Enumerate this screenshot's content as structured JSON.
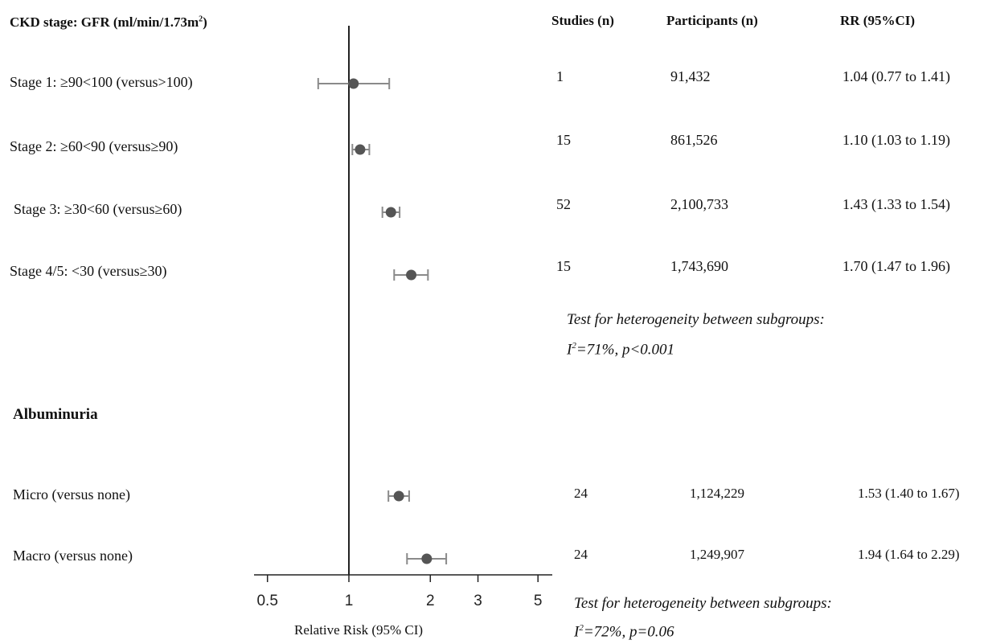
{
  "chart_data": {
    "type": "forest",
    "title": "",
    "xlabel": "Relative Risk (95% CI)",
    "xscale": "log",
    "xlim": [
      0.5,
      5
    ],
    "xticks": [
      0.5,
      1,
      2,
      3,
      5
    ],
    "xtick_labels": [
      "0.5",
      "1",
      "2",
      "3",
      "5"
    ],
    "reference_line": 1,
    "columns": [
      "Studies (n)",
      "Participants (n)",
      "RR (95%CI)"
    ],
    "groups": [
      {
        "heading_main": "CKD stage: GFR (ml/min/1.73m",
        "heading_sup": "2",
        "heading_end": ")",
        "rows": [
          {
            "label": "Stage 1: ≥90<100 (versus>100)",
            "studies": "1",
            "participants": "91,432",
            "rr_text": "1.04 (0.77 to 1.41)",
            "rr": 1.04,
            "lo": 0.77,
            "hi": 1.41
          },
          {
            "label": "Stage 2: ≥60<90 (versus≥90)",
            "studies": "15",
            "participants": "861,526",
            "rr_text": "1.10 (1.03 to 1.19)",
            "rr": 1.1,
            "lo": 1.03,
            "hi": 1.19
          },
          {
            "label": "Stage 3: ≥30<60 (versus≥60)",
            "studies": "52",
            "participants": "2,100,733",
            "rr_text": "1.43 (1.33 to 1.54)",
            "rr": 1.43,
            "lo": 1.33,
            "hi": 1.54
          },
          {
            "label": "Stage 4/5: <30 (versus≥30)",
            "studies": "15",
            "participants": "1,743,690",
            "rr_text": "1.70 (1.47 to 1.96)",
            "rr": 1.7,
            "lo": 1.47,
            "hi": 1.96
          }
        ],
        "heterogeneity_line1": "Test for heterogeneity between subgroups:",
        "heterogeneity_i": "I",
        "heterogeneity_sup": "2",
        "heterogeneity_rest": "=71%, p<0.001"
      },
      {
        "heading_main": "Albuminuria",
        "rows": [
          {
            "label": "Micro (versus none)",
            "studies": "24",
            "participants": "1,124,229",
            "rr_text": "1.53 (1.40 to 1.67)",
            "rr": 1.53,
            "lo": 1.4,
            "hi": 1.67
          },
          {
            "label": "Macro (versus none)",
            "studies": "24",
            "participants": "1,249,907",
            "rr_text": "1.94 (1.64 to 2.29)",
            "rr": 1.94,
            "lo": 1.64,
            "hi": 2.29
          }
        ],
        "heterogeneity_line1": "Test for heterogeneity between subgroups:",
        "heterogeneity_i": "I",
        "heterogeneity_sup": "2",
        "heterogeneity_rest": "=72%, p=0.06"
      }
    ],
    "colors": {
      "marker": "#555555",
      "ci": "#8a8a8a",
      "axis": "#222222"
    }
  }
}
